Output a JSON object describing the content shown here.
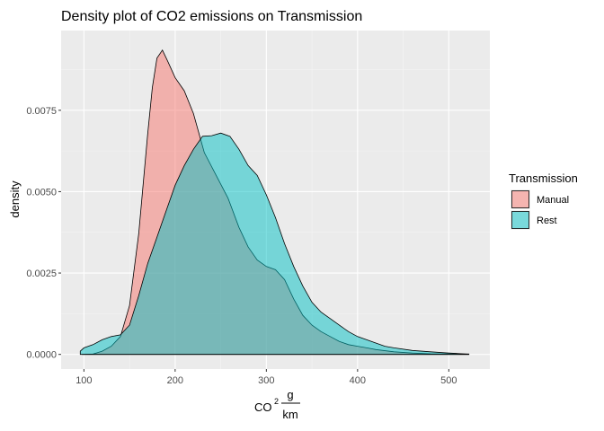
{
  "chart_data": {
    "type": "area",
    "title": "Density plot of CO2 emissions on Transmission",
    "xlabel_main": "CO",
    "xlabel_sup": "2",
    "xlabel_num": "g",
    "xlabel_den": "km",
    "ylabel": "density",
    "xlim": [
      75,
      545
    ],
    "ylim": [
      -0.00045,
      0.00995
    ],
    "x_ticks": [
      100,
      200,
      300,
      400,
      500
    ],
    "x_tick_labels": [
      "100",
      "200",
      "300",
      "400",
      "500"
    ],
    "y_ticks": [
      0,
      0.0025,
      0.005,
      0.0075
    ],
    "y_tick_labels": [
      "0.0000",
      "0.0025",
      "0.0050",
      "0.0075"
    ],
    "grid": true,
    "legend": {
      "title": "Transmission",
      "position": "right"
    },
    "series": [
      {
        "name": "Manual",
        "color": "#F8766D",
        "points": [
          [
            98,
            0
          ],
          [
            110,
            1e-05
          ],
          [
            120,
            0.0001
          ],
          [
            130,
            0.00025
          ],
          [
            140,
            0.00055
          ],
          [
            150,
            0.0015
          ],
          [
            160,
            0.0037
          ],
          [
            170,
            0.0068
          ],
          [
            175,
            0.0082
          ],
          [
            180,
            0.0091
          ],
          [
            186,
            0.00935
          ],
          [
            192,
            0.009
          ],
          [
            200,
            0.0085
          ],
          [
            210,
            0.0081
          ],
          [
            220,
            0.0074
          ],
          [
            232,
            0.0062
          ],
          [
            245,
            0.0055
          ],
          [
            258,
            0.0048
          ],
          [
            270,
            0.0039
          ],
          [
            280,
            0.0033
          ],
          [
            290,
            0.0029
          ],
          [
            300,
            0.0027
          ],
          [
            310,
            0.0026
          ],
          [
            320,
            0.0023
          ],
          [
            330,
            0.0017
          ],
          [
            340,
            0.0012
          ],
          [
            350,
            0.0009
          ],
          [
            360,
            0.0007
          ],
          [
            370,
            0.00055
          ],
          [
            380,
            0.0004
          ],
          [
            390,
            0.0003
          ],
          [
            400,
            0.00025
          ],
          [
            410,
            0.0002
          ],
          [
            420,
            0.00015
          ],
          [
            440,
            8e-05
          ],
          [
            460,
            4e-05
          ],
          [
            480,
            2e-05
          ],
          [
            500,
            1.5e-05
          ],
          [
            515,
            1e-05
          ],
          [
            522,
            0
          ]
        ]
      },
      {
        "name": "Rest",
        "color": "#00BFC4",
        "points": [
          [
            96,
            0.0001
          ],
          [
            100,
            0.0002
          ],
          [
            110,
            0.0003
          ],
          [
            120,
            0.00045
          ],
          [
            130,
            0.00055
          ],
          [
            140,
            0.0006
          ],
          [
            150,
            0.0009
          ],
          [
            160,
            0.0018
          ],
          [
            170,
            0.0028
          ],
          [
            180,
            0.0036
          ],
          [
            190,
            0.0044
          ],
          [
            200,
            0.0052
          ],
          [
            210,
            0.0058
          ],
          [
            220,
            0.0063
          ],
          [
            230,
            0.0067
          ],
          [
            240,
            0.00672
          ],
          [
            250,
            0.0068
          ],
          [
            260,
            0.0067
          ],
          [
            270,
            0.0063
          ],
          [
            280,
            0.0058
          ],
          [
            290,
            0.0055
          ],
          [
            300,
            0.0049
          ],
          [
            310,
            0.0042
          ],
          [
            320,
            0.0034
          ],
          [
            330,
            0.0027
          ],
          [
            340,
            0.0021
          ],
          [
            350,
            0.0016
          ],
          [
            360,
            0.0013
          ],
          [
            370,
            0.0011
          ],
          [
            380,
            0.0009
          ],
          [
            390,
            0.0007
          ],
          [
            400,
            0.00055
          ],
          [
            410,
            0.00045
          ],
          [
            420,
            0.00035
          ],
          [
            430,
            0.00025
          ],
          [
            440,
            0.0002
          ],
          [
            460,
            0.00012
          ],
          [
            480,
            8e-05
          ],
          [
            500,
            4e-05
          ],
          [
            515,
            2e-05
          ],
          [
            522,
            1e-05
          ]
        ]
      }
    ]
  }
}
